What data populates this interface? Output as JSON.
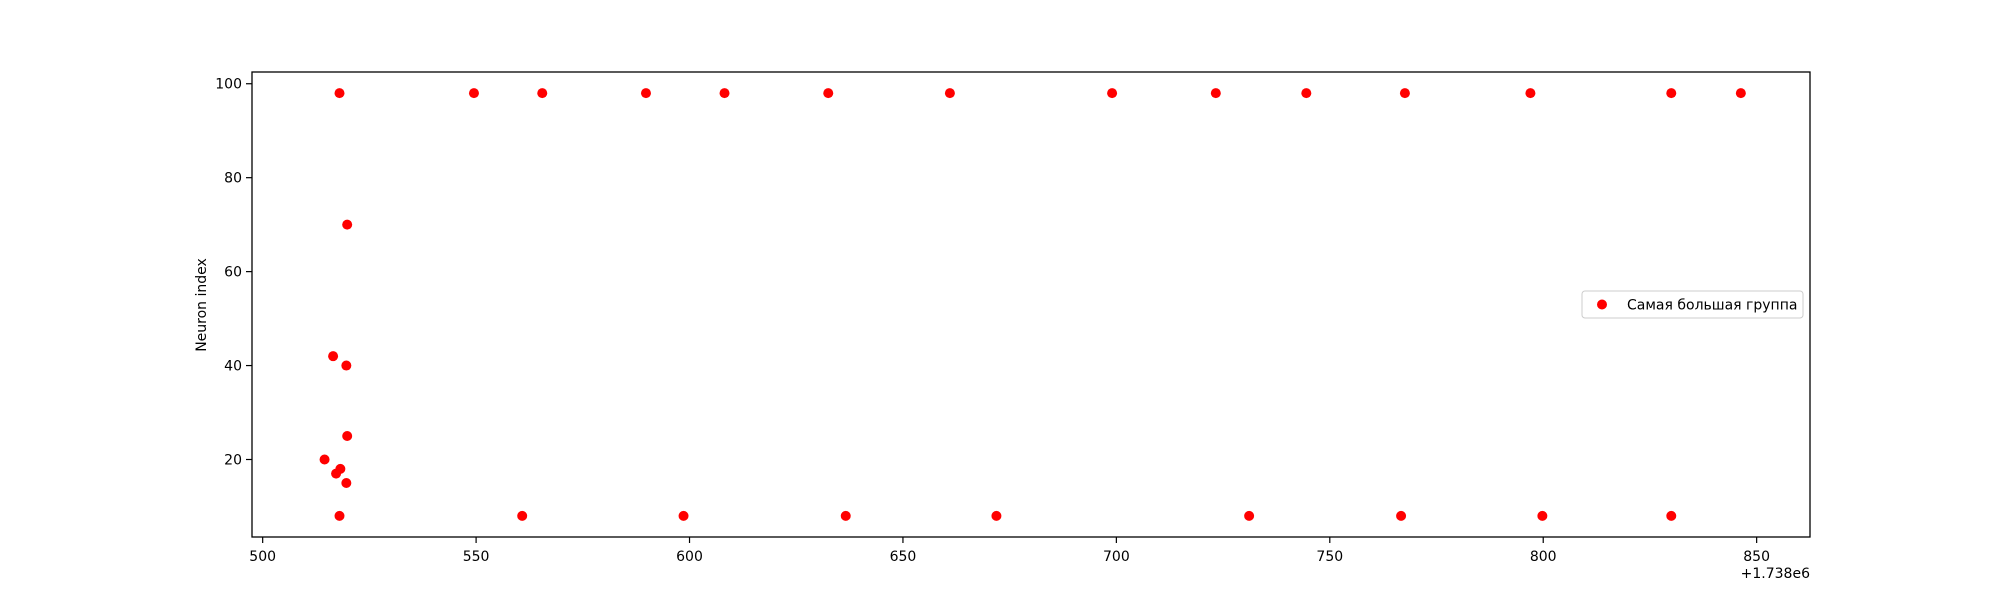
{
  "chart_data": {
    "type": "scatter",
    "title": "",
    "xlabel": "",
    "ylabel": "Neuron index",
    "x_offset_label": "+1.738e6",
    "xlim": [
      497.5,
      862.5
    ],
    "ylim": [
      3.5,
      102.5
    ],
    "xticks": [
      500,
      550,
      600,
      650,
      700,
      750,
      800,
      850
    ],
    "yticks": [
      20,
      40,
      60,
      80,
      100
    ],
    "grid": false,
    "legend": {
      "position": "center-right",
      "entries": [
        "Самая большая группа"
      ]
    },
    "series": [
      {
        "name": "Самая большая группа",
        "color": "#ff0000",
        "marker": "circle",
        "points": [
          [
            518,
            98
          ],
          [
            549.5,
            98
          ],
          [
            565.5,
            98
          ],
          [
            589.8,
            98
          ],
          [
            608.2,
            98
          ],
          [
            632.5,
            98
          ],
          [
            661,
            98
          ],
          [
            699,
            98
          ],
          [
            723.3,
            98
          ],
          [
            744.5,
            98
          ],
          [
            767.6,
            98
          ],
          [
            797,
            98
          ],
          [
            830,
            98
          ],
          [
            846.3,
            98
          ],
          [
            519.8,
            70
          ],
          [
            516.5,
            42
          ],
          [
            519.6,
            40
          ],
          [
            519.8,
            25
          ],
          [
            514.5,
            20
          ],
          [
            518.2,
            18
          ],
          [
            517.2,
            17
          ],
          [
            519.6,
            15
          ],
          [
            518,
            8
          ],
          [
            560.8,
            8
          ],
          [
            598.6,
            8
          ],
          [
            636.6,
            8
          ],
          [
            671.9,
            8
          ],
          [
            731.1,
            8
          ],
          [
            766.7,
            8
          ],
          [
            799.8,
            8
          ],
          [
            830,
            8
          ]
        ]
      }
    ]
  }
}
